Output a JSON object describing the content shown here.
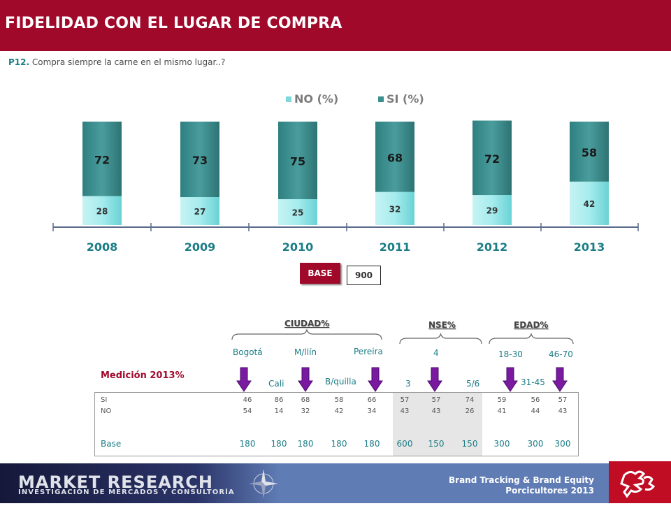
{
  "header": {
    "title": "FIDELIDAD CON EL LUGAR DE COMPRA",
    "question_code": "P12.",
    "question_text": "Compra siempre la carne en el mismo lugar..?"
  },
  "colors": {
    "brand_red": "#a1092b",
    "no_color": "#a6ecee",
    "si_color": "#3b8f8f",
    "teal_text": "#1c7d86"
  },
  "chart_data": {
    "type": "bar",
    "stacked": true,
    "categories": [
      "2008",
      "2009",
      "2010",
      "2011",
      "2012",
      "2013"
    ],
    "series": [
      {
        "name": "NO (%)",
        "values": [
          28,
          27,
          25,
          32,
          29,
          42
        ]
      },
      {
        "name": "SI (%)",
        "values": [
          72,
          73,
          75,
          68,
          72,
          58
        ]
      }
    ],
    "ylim": [
      0,
      100
    ],
    "legend": "top",
    "grid": false
  },
  "base": {
    "label": "BASE",
    "value": "900"
  },
  "detail": {
    "title": "Medición 2013%",
    "groups": [
      {
        "label": "CIUDAD%"
      },
      {
        "label": "NSE%"
      },
      {
        "label": "EDAD%"
      }
    ],
    "columns": [
      "Bogotá",
      "Cali",
      "M/llín",
      "B/quilla",
      "Pereira",
      "3",
      "4",
      "5/6",
      "18-30",
      "31-45",
      "46-70"
    ],
    "rows": [
      {
        "label": "SI",
        "values": [
          "46",
          "86",
          "68",
          "58",
          "66",
          "57",
          "57",
          "74",
          "59",
          "56",
          "57"
        ]
      },
      {
        "label": "NO",
        "values": [
          "54",
          "14",
          "32",
          "42",
          "34",
          "43",
          "43",
          "26",
          "41",
          "44",
          "43"
        ]
      }
    ],
    "base_row": {
      "label": "Base",
      "values": [
        "180",
        "180",
        "180",
        "180",
        "180",
        "600",
        "150",
        "150",
        "300",
        "300",
        "300"
      ]
    }
  },
  "footer": {
    "company": "MARKET RESEARCH",
    "tagline": "INVESTIGACIÓN DE MERCADOS Y CONSULTORÍA",
    "brand_line1": "Brand Tracking & Brand Equity",
    "brand_line2": "Porcicultores 2013"
  }
}
